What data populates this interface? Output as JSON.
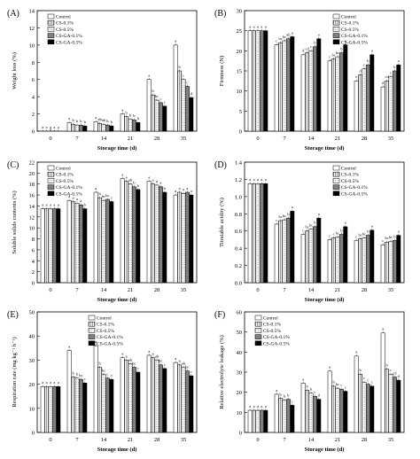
{
  "chart_data": [
    {
      "panel": "(A)",
      "type": "bar",
      "xlabel": "Storage time (d)",
      "ylabel": "Weight loss (%)",
      "ylim": [
        0,
        14
      ],
      "yticks": [
        0,
        2,
        4,
        6,
        8,
        10,
        12,
        14
      ],
      "categories": [
        "0",
        "7",
        "14",
        "21",
        "28",
        "35"
      ],
      "legend_position": "top-left",
      "series": [
        {
          "name": "Control",
          "values": [
            0,
            1.0,
            1.1,
            2.0,
            6.0,
            10.0
          ],
          "letters": [
            "a",
            "a",
            "a",
            "a",
            "a",
            "a"
          ]
        },
        {
          "name": "CS-0.1%",
          "values": [
            0,
            0.8,
            0.9,
            1.7,
            4.2,
            7.0
          ],
          "letters": [
            "a",
            "b",
            "ab",
            "b",
            "b",
            "b"
          ]
        },
        {
          "name": "CS-0.5%",
          "values": [
            0,
            0.7,
            0.8,
            1.4,
            3.6,
            6.0
          ],
          "letters": [
            "a",
            "b",
            "ab",
            "b",
            "bc",
            "c"
          ]
        },
        {
          "name": "CS-GA-0.1%",
          "values": [
            0,
            0.7,
            0.7,
            1.3,
            3.3,
            5.2
          ],
          "letters": [
            "a",
            "b",
            "b",
            "b",
            "c",
            "c"
          ]
        },
        {
          "name": "CS-GA-0.5%",
          "values": [
            0,
            0.6,
            0.6,
            1.0,
            2.9,
            3.9
          ],
          "letters": [
            "a",
            "b",
            "b",
            "b",
            "c",
            "d"
          ]
        }
      ]
    },
    {
      "panel": "(B)",
      "type": "bar",
      "xlabel": "Storage time (d)",
      "ylabel": "Firmness (N)",
      "ylim": [
        0,
        30
      ],
      "yticks": [
        0,
        5,
        10,
        15,
        20,
        25,
        30
      ],
      "categories": [
        "0",
        "7",
        "14",
        "21",
        "28",
        "35"
      ],
      "legend_position": "top-right",
      "series": [
        {
          "name": "Control",
          "values": [
            25,
            21.5,
            19,
            17.5,
            12.5,
            11
          ],
          "letters": [
            "a",
            "c",
            "d",
            "c",
            "e",
            "d"
          ]
        },
        {
          "name": "CS-0.1%",
          "values": [
            25,
            22,
            19.5,
            18,
            14,
            12.5
          ],
          "letters": [
            "a",
            "bc",
            "cd",
            "bc",
            "d",
            "cd"
          ]
        },
        {
          "name": "CS-0.5%",
          "values": [
            25,
            22.5,
            20,
            18.5,
            15.5,
            13.5
          ],
          "letters": [
            "a",
            "bc",
            "c",
            "bc",
            "c",
            "c"
          ]
        },
        {
          "name": "CS-GA-0.1%",
          "values": [
            25,
            23,
            21,
            19.5,
            16.5,
            15
          ],
          "letters": [
            "a",
            "ab",
            "b",
            "b",
            "b",
            "b"
          ]
        },
        {
          "name": "CS-GA-0.5%",
          "values": [
            25,
            23.5,
            23,
            21.5,
            19,
            16.5
          ],
          "letters": [
            "a",
            "a",
            "a",
            "a",
            "a",
            "a"
          ]
        }
      ]
    },
    {
      "panel": "(C)",
      "type": "bar",
      "xlabel": "Storage time (d)",
      "ylabel": "Soluble solids contents (%)",
      "ylim": [
        0,
        22
      ],
      "yticks": [
        0,
        2,
        4,
        6,
        8,
        10,
        12,
        14,
        16,
        18,
        20,
        22
      ],
      "categories": [
        "0",
        "7",
        "14",
        "21",
        "28",
        "35"
      ],
      "legend_position": "top-left",
      "series": [
        {
          "name": "Control",
          "values": [
            13.5,
            15.0,
            16.5,
            19.0,
            18.5,
            16.0
          ],
          "letters": [
            "a",
            "a",
            "a",
            "a",
            "a",
            "a"
          ]
        },
        {
          "name": "CS-0.1%",
          "values": [
            13.5,
            14.8,
            15.5,
            18.5,
            18.0,
            16.5
          ],
          "letters": [
            "a",
            "a",
            "b",
            "a",
            "a",
            "a"
          ]
        },
        {
          "name": "CS-0.5%",
          "values": [
            13.5,
            14.5,
            15.0,
            18.0,
            17.8,
            16.3
          ],
          "letters": [
            "a",
            "a",
            "bc",
            "ab",
            "a",
            "a"
          ]
        },
        {
          "name": "CS-GA-0.1%",
          "values": [
            13.5,
            14.2,
            15.2,
            17.5,
            17.5,
            16.5
          ],
          "letters": [
            "a",
            "a",
            "bc",
            "b",
            "a",
            "a"
          ]
        },
        {
          "name": "CS-GA-0.5%",
          "values": [
            13.5,
            13.5,
            14.8,
            17.0,
            16.5,
            16.0
          ],
          "letters": [
            "a",
            "b",
            "c",
            "b",
            "b",
            "a"
          ]
        }
      ]
    },
    {
      "panel": "(D)",
      "type": "bar",
      "xlabel": "Storage time (d)",
      "ylabel": "Titratable acidity (%)",
      "ylim": [
        0.0,
        1.4
      ],
      "yticks": [
        0.0,
        0.2,
        0.4,
        0.6,
        0.8,
        1.0,
        1.2,
        1.4
      ],
      "categories": [
        "0",
        "7",
        "14",
        "21",
        "28",
        "35"
      ],
      "legend_position": "top-right",
      "series": [
        {
          "name": "Control",
          "values": [
            1.15,
            0.68,
            0.56,
            0.5,
            0.49,
            0.44
          ],
          "letters": [
            "a",
            "c",
            "c",
            "c",
            "c",
            "c"
          ]
        },
        {
          "name": "CS-0.1%",
          "values": [
            1.15,
            0.72,
            0.6,
            0.52,
            0.51,
            0.47
          ],
          "letters": [
            "a",
            "bc",
            "bc",
            "c",
            "bc",
            "bc"
          ]
        },
        {
          "name": "CS-0.5%",
          "values": [
            1.15,
            0.73,
            0.62,
            0.53,
            0.52,
            0.48
          ],
          "letters": [
            "a",
            "bc",
            "bc",
            "bc",
            "bc",
            "bc"
          ]
        },
        {
          "name": "CS-GA-0.1%",
          "values": [
            1.15,
            0.75,
            0.65,
            0.56,
            0.55,
            0.49
          ],
          "letters": [
            "a",
            "b",
            "b",
            "b",
            "b",
            "b"
          ]
        },
        {
          "name": "CS-GA-0.5%",
          "values": [
            1.15,
            0.83,
            0.75,
            0.65,
            0.61,
            0.55
          ],
          "letters": [
            "a",
            "a",
            "a",
            "a",
            "a",
            "a"
          ]
        }
      ]
    },
    {
      "panel": "(E)",
      "type": "bar",
      "xlabel": "Storage time (d)",
      "ylabel": "Respiration rate (mg kg⁻¹ h⁻¹)",
      "ylim": [
        0,
        50
      ],
      "yticks": [
        0,
        10,
        20,
        30,
        40,
        50
      ],
      "categories": [
        "0",
        "7",
        "14",
        "21",
        "28",
        "35"
      ],
      "legend_position": "top-center",
      "series": [
        {
          "name": "Control",
          "values": [
            19,
            34,
            36,
            31,
            32,
            29
          ],
          "letters": [
            "a",
            "a",
            "a",
            "a",
            "a",
            "a"
          ]
        },
        {
          "name": "CS-0.1%",
          "values": [
            19,
            23,
            27,
            30,
            31,
            28
          ],
          "letters": [
            "a",
            "b",
            "b",
            "a",
            "a",
            "a"
          ]
        },
        {
          "name": "CS-0.5%",
          "values": [
            19,
            22.5,
            24,
            28.5,
            30,
            27
          ],
          "letters": [
            "a",
            "b",
            "bc",
            "ab",
            "ab",
            "ab"
          ]
        },
        {
          "name": "CS-GA-0.1%",
          "values": [
            19,
            22,
            22.5,
            27,
            28,
            25.5
          ],
          "letters": [
            "a",
            "bc",
            "c",
            "bc",
            "bc",
            "bc"
          ]
        },
        {
          "name": "CS-GA-0.5%",
          "values": [
            19,
            20.5,
            22,
            25,
            26.5,
            23.5
          ],
          "letters": [
            "a",
            "c",
            "c",
            "c",
            "c",
            "c"
          ]
        }
      ]
    },
    {
      "panel": "(F)",
      "type": "bar",
      "xlabel": "Storage time (d)",
      "ylabel": "Relative electrolyte leakage (%)",
      "ylim": [
        0,
        60
      ],
      "yticks": [
        0,
        10,
        20,
        30,
        40,
        50,
        60
      ],
      "categories": [
        "0",
        "7",
        "14",
        "21",
        "28",
        "35"
      ],
      "legend_position": "top-left",
      "series": [
        {
          "name": "Control",
          "values": [
            11,
            19,
            24.5,
            30.5,
            38,
            49.5
          ],
          "letters": [
            "a",
            "a",
            "a",
            "a",
            "a",
            "a"
          ]
        },
        {
          "name": "CS-0.1%",
          "values": [
            11,
            17,
            21,
            23,
            29,
            31.5
          ],
          "letters": [
            "a",
            "b",
            "b",
            "b",
            "b",
            "b"
          ]
        },
        {
          "name": "CS-0.5%",
          "values": [
            11,
            16,
            19.5,
            22,
            25,
            29
          ],
          "letters": [
            "a",
            "b",
            "b",
            "bc",
            "c",
            "c"
          ]
        },
        {
          "name": "CS-GA-0.1%",
          "values": [
            11,
            16.5,
            18,
            21.5,
            24,
            27.5
          ],
          "letters": [
            "a",
            "b",
            "c",
            "c",
            "c",
            "cd"
          ]
        },
        {
          "name": "CS-GA-0.5%",
          "values": [
            11,
            13.5,
            16.5,
            20.5,
            23,
            26
          ],
          "letters": [
            "a",
            "c",
            "d",
            "c",
            "c",
            "d"
          ]
        }
      ]
    }
  ],
  "series_styles": [
    {
      "name": "Control",
      "fill": "#ffffff",
      "pattern": "none"
    },
    {
      "name": "CS-0.1%",
      "fill": "#ffffff",
      "pattern": "vertical-lines"
    },
    {
      "name": "CS-0.5%",
      "fill": "#ffffff",
      "pattern": "dots"
    },
    {
      "name": "CS-GA-0.1%",
      "fill": "#808080",
      "pattern": "none"
    },
    {
      "name": "CS-GA-0.5%",
      "fill": "#000000",
      "pattern": "none"
    }
  ]
}
